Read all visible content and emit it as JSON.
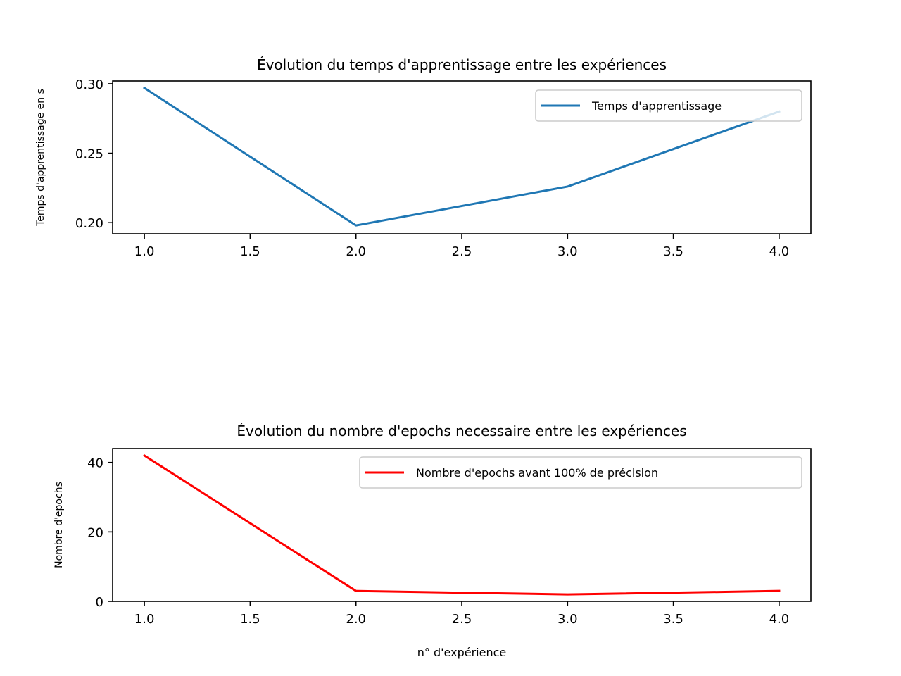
{
  "chart_data": [
    {
      "type": "line",
      "title": "Évolution du temps d'apprentissage entre les expériences",
      "xlabel": "",
      "ylabel": "Temps d'apprentissage en s",
      "x": [
        1.0,
        2.0,
        3.0,
        4.0
      ],
      "xlim": [
        0.85,
        4.15
      ],
      "ylim": [
        0.192,
        0.302
      ],
      "xticks": [
        1.0,
        1.5,
        2.0,
        2.5,
        3.0,
        3.5,
        4.0
      ],
      "xtick_labels": [
        "1.0",
        "1.5",
        "2.0",
        "2.5",
        "3.0",
        "3.5",
        "4.0"
      ],
      "yticks": [
        0.2,
        0.25,
        0.3
      ],
      "ytick_labels": [
        "0.20",
        "0.25",
        "0.30"
      ],
      "grid": false,
      "legend_position": "top-right",
      "series": [
        {
          "name": "Temps d'apprentissage",
          "color": "#1f77b4",
          "values": [
            0.297,
            0.198,
            0.226,
            0.28
          ]
        }
      ]
    },
    {
      "type": "line",
      "title": "Évolution du nombre d'epochs necessaire entre les expériences",
      "xlabel": "n° d'expérience",
      "ylabel": "Nombre d'epochs",
      "x": [
        1.0,
        2.0,
        3.0,
        4.0
      ],
      "xlim": [
        0.85,
        4.15
      ],
      "ylim": [
        0,
        44
      ],
      "xticks": [
        1.0,
        1.5,
        2.0,
        2.5,
        3.0,
        3.5,
        4.0
      ],
      "xtick_labels": [
        "1.0",
        "1.5",
        "2.0",
        "2.5",
        "3.0",
        "3.5",
        "4.0"
      ],
      "yticks": [
        0,
        20,
        40
      ],
      "ytick_labels": [
        "0",
        "20",
        "40"
      ],
      "grid": false,
      "legend_position": "top-right",
      "series": [
        {
          "name": "Nombre d'epochs avant 100% de précision",
          "color": "#ff0000",
          "values": [
            42,
            3,
            2,
            3
          ]
        }
      ]
    }
  ]
}
